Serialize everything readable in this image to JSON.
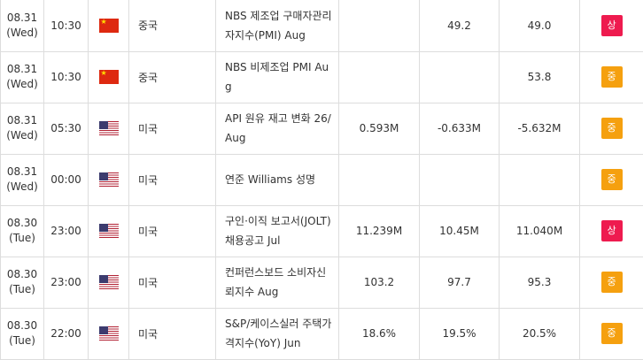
{
  "colors": {
    "high": "#ee1b4f",
    "medium": "#f5a00f",
    "border": "#dddddd"
  },
  "rows": [
    {
      "date": "08.31",
      "day": "(Wed)",
      "time": "10:30",
      "flag": "china-flag-icon",
      "country": "중국",
      "event": "NBS 제조업 구매자관리자지수(PMI) Aug",
      "actual": "",
      "forecast": "49.2",
      "previous": "49.0",
      "importance": "상",
      "level": "high"
    },
    {
      "date": "08.31",
      "day": "(Wed)",
      "time": "10:30",
      "flag": "china-flag-icon",
      "country": "중국",
      "event": "NBS 비제조업 PMI Aug",
      "actual": "",
      "forecast": "",
      "previous": "53.8",
      "importance": "중",
      "level": "medium"
    },
    {
      "date": "08.31",
      "day": "(Wed)",
      "time": "05:30",
      "flag": "usa-flag-icon",
      "country": "미국",
      "event": "API 원유 재고 변화 26/Aug",
      "actual": "0.593M",
      "forecast": "-0.633M",
      "previous": "-5.632M",
      "importance": "중",
      "level": "medium"
    },
    {
      "date": "08.31",
      "day": "(Wed)",
      "time": "00:00",
      "flag": "usa-flag-icon",
      "country": "미국",
      "event": "연준 Williams 성명",
      "actual": "",
      "forecast": "",
      "previous": "",
      "importance": "중",
      "level": "medium"
    },
    {
      "date": "08.30",
      "day": "(Tue)",
      "time": "23:00",
      "flag": "usa-flag-icon",
      "country": "미국",
      "event": "구인·이직 보고서(JOLT) 채용공고 Jul",
      "actual": "11.239M",
      "forecast": "10.45M",
      "previous": "11.040M",
      "importance": "상",
      "level": "high"
    },
    {
      "date": "08.30",
      "day": "(Tue)",
      "time": "23:00",
      "flag": "usa-flag-icon",
      "country": "미국",
      "event": "컨퍼런스보드 소비자신뢰지수 Aug",
      "actual": "103.2",
      "forecast": "97.7",
      "previous": "95.3",
      "importance": "중",
      "level": "medium"
    },
    {
      "date": "08.30",
      "day": "(Tue)",
      "time": "22:00",
      "flag": "usa-flag-icon",
      "country": "미국",
      "event": "S&P/케이스실러 주택가격지수(YoY) Jun",
      "actual": "18.6%",
      "forecast": "19.5%",
      "previous": "20.5%",
      "importance": "중",
      "level": "medium"
    }
  ]
}
